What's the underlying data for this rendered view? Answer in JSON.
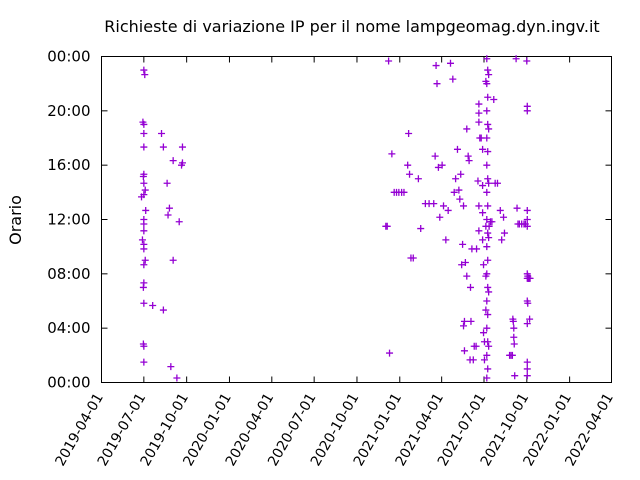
{
  "chart_data": {
    "type": "scatter",
    "title": "Richieste di variazione IP per il nome lampgeomag.dyn.ingv.it",
    "xlabel": "",
    "ylabel": "Orario",
    "x_type": "date",
    "xlim": [
      "2019-04-01",
      "2022-04-01"
    ],
    "ylim": [
      "00:00",
      "24:00"
    ],
    "x_ticks": [
      "2019-04-01",
      "2019-07-01",
      "2019-10-01",
      "2020-01-01",
      "2020-04-01",
      "2020-07-01",
      "2020-10-01",
      "2021-01-01",
      "2021-04-01",
      "2021-07-01",
      "2021-10-01",
      "2022-01-01",
      "2022-04-01"
    ],
    "y_ticks": [
      "00:00",
      "04:00",
      "08:00",
      "12:00",
      "16:00",
      "20:00",
      "00:00"
    ],
    "grid": false,
    "legend": "none",
    "marker": "plus",
    "color": "#9400d3",
    "points": [
      [
        "2019-06-26",
        "13:40"
      ],
      [
        "2019-06-28",
        "10:30"
      ],
      [
        "2019-06-29",
        "19:10"
      ],
      [
        "2019-06-30",
        "15:10"
      ],
      [
        "2019-06-30",
        "07:00"
      ],
      [
        "2019-06-30",
        "02:50"
      ],
      [
        "2019-07-01",
        "23:00"
      ],
      [
        "2019-07-01",
        "19:00"
      ],
      [
        "2019-07-01",
        "18:20"
      ],
      [
        "2019-07-01",
        "17:20"
      ],
      [
        "2019-07-01",
        "15:20"
      ],
      [
        "2019-07-01",
        "14:40"
      ],
      [
        "2019-07-01",
        "13:50"
      ],
      [
        "2019-07-01",
        "12:00"
      ],
      [
        "2019-07-01",
        "11:40"
      ],
      [
        "2019-07-01",
        "11:10"
      ],
      [
        "2019-07-01",
        "10:10"
      ],
      [
        "2019-07-01",
        "09:50"
      ],
      [
        "2019-07-01",
        "08:40"
      ],
      [
        "2019-07-01",
        "07:20"
      ],
      [
        "2019-07-01",
        "05:50"
      ],
      [
        "2019-07-01",
        "02:40"
      ],
      [
        "2019-07-01",
        "01:30"
      ],
      [
        "2019-07-03",
        "22:40"
      ],
      [
        "2019-07-04",
        "14:10"
      ],
      [
        "2019-07-04",
        "09:00"
      ],
      [
        "2019-07-05",
        "12:40"
      ],
      [
        "2019-07-20",
        "05:40"
      ],
      [
        "2019-08-08",
        "18:20"
      ],
      [
        "2019-08-12",
        "17:20"
      ],
      [
        "2019-08-12",
        "05:20"
      ],
      [
        "2019-08-20",
        "14:40"
      ],
      [
        "2019-08-22",
        "12:20"
      ],
      [
        "2019-08-25",
        "12:50"
      ],
      [
        "2019-08-28",
        "01:10"
      ],
      [
        "2019-09-02",
        "16:20"
      ],
      [
        "2019-09-02",
        "09:00"
      ],
      [
        "2019-09-10",
        "00:20"
      ],
      [
        "2019-09-15",
        "11:50"
      ],
      [
        "2019-09-20",
        "16:00"
      ],
      [
        "2019-09-22",
        "17:20"
      ],
      [
        "2019-09-22",
        "16:10"
      ],
      [
        "2020-12-02",
        "11:30"
      ],
      [
        "2020-12-05",
        "11:30"
      ],
      [
        "2020-12-08",
        "23:40"
      ],
      [
        "2020-12-10",
        "02:10"
      ],
      [
        "2020-12-15",
        "16:50"
      ],
      [
        "2020-12-20",
        "14:00"
      ],
      [
        "2020-12-25",
        "14:00"
      ],
      [
        "2020-12-30",
        "14:00"
      ],
      [
        "2021-01-05",
        "14:00"
      ],
      [
        "2021-01-10",
        "14:00"
      ],
      [
        "2021-01-18",
        "16:00"
      ],
      [
        "2021-01-20",
        "18:20"
      ],
      [
        "2021-01-22",
        "15:20"
      ],
      [
        "2021-01-25",
        "09:10"
      ],
      [
        "2021-01-30",
        "09:10"
      ],
      [
        "2021-02-10",
        "15:00"
      ],
      [
        "2021-02-15",
        "11:20"
      ],
      [
        "2021-02-25",
        "13:10"
      ],
      [
        "2021-03-05",
        "13:10"
      ],
      [
        "2021-03-15",
        "13:10"
      ],
      [
        "2021-03-18",
        "16:40"
      ],
      [
        "2021-03-20",
        "23:20"
      ],
      [
        "2021-03-22",
        "22:00"
      ],
      [
        "2021-03-25",
        "15:50"
      ],
      [
        "2021-03-28",
        "12:10"
      ],
      [
        "2021-04-02",
        "16:00"
      ],
      [
        "2021-04-05",
        "13:00"
      ],
      [
        "2021-04-10",
        "10:30"
      ],
      [
        "2021-04-15",
        "12:40"
      ],
      [
        "2021-04-20",
        "23:30"
      ],
      [
        "2021-04-25",
        "22:20"
      ],
      [
        "2021-04-28",
        "14:00"
      ],
      [
        "2021-05-01",
        "15:00"
      ],
      [
        "2021-05-05",
        "17:10"
      ],
      [
        "2021-05-08",
        "14:10"
      ],
      [
        "2021-05-10",
        "13:30"
      ],
      [
        "2021-05-12",
        "15:20"
      ],
      [
        "2021-05-14",
        "08:40"
      ],
      [
        "2021-05-16",
        "10:10"
      ],
      [
        "2021-05-18",
        "13:00"
      ],
      [
        "2021-05-18",
        "04:10"
      ],
      [
        "2021-05-20",
        "04:30"
      ],
      [
        "2021-05-20",
        "02:20"
      ],
      [
        "2021-05-22",
        "08:50"
      ],
      [
        "2021-05-25",
        "18:40"
      ],
      [
        "2021-05-25",
        "07:50"
      ],
      [
        "2021-05-28",
        "16:40"
      ],
      [
        "2021-05-30",
        "16:20"
      ],
      [
        "2021-06-01",
        "01:40"
      ],
      [
        "2021-06-02",
        "07:00"
      ],
      [
        "2021-06-03",
        "04:30"
      ],
      [
        "2021-06-05",
        "09:50"
      ],
      [
        "2021-06-08",
        "01:40"
      ],
      [
        "2021-06-10",
        "02:40"
      ],
      [
        "2021-06-14",
        "02:40"
      ],
      [
        "2021-06-15",
        "09:50"
      ],
      [
        "2021-06-18",
        "14:50"
      ],
      [
        "2021-06-20",
        "20:30"
      ],
      [
        "2021-06-20",
        "19:50"
      ],
      [
        "2021-06-20",
        "19:10"
      ],
      [
        "2021-06-20",
        "13:00"
      ],
      [
        "2021-06-20",
        "11:10"
      ],
      [
        "2021-06-22",
        "18:00"
      ],
      [
        "2021-06-25",
        "18:00"
      ],
      [
        "2021-06-28",
        "17:10"
      ],
      [
        "2021-06-28",
        "14:30"
      ],
      [
        "2021-06-28",
        "12:30"
      ],
      [
        "2021-06-28",
        "10:30"
      ],
      [
        "2021-06-30",
        "08:40"
      ],
      [
        "2021-06-30",
        "03:40"
      ],
      [
        "2021-07-02",
        "03:00"
      ],
      [
        "2021-07-02",
        "01:40"
      ],
      [
        "2021-07-05",
        "22:10"
      ],
      [
        "2021-07-05",
        "11:30"
      ],
      [
        "2021-07-05",
        "07:50"
      ],
      [
        "2021-07-05",
        "05:20"
      ],
      [
        "2021-07-07",
        "23:50"
      ],
      [
        "2021-07-07",
        "22:00"
      ],
      [
        "2021-07-07",
        "20:00"
      ],
      [
        "2021-07-07",
        "18:00"
      ],
      [
        "2021-07-07",
        "16:00"
      ],
      [
        "2021-07-07",
        "14:00"
      ],
      [
        "2021-07-07",
        "12:00"
      ],
      [
        "2021-07-07",
        "10:00"
      ],
      [
        "2021-07-07",
        "08:00"
      ],
      [
        "2021-07-07",
        "06:00"
      ],
      [
        "2021-07-07",
        "04:00"
      ],
      [
        "2021-07-07",
        "02:00"
      ],
      [
        "2021-07-07",
        "00:20"
      ],
      [
        "2021-07-09",
        "23:00"
      ],
      [
        "2021-07-09",
        "21:00"
      ],
      [
        "2021-07-09",
        "19:00"
      ],
      [
        "2021-07-09",
        "17:00"
      ],
      [
        "2021-07-09",
        "15:00"
      ],
      [
        "2021-07-09",
        "13:00"
      ],
      [
        "2021-07-09",
        "11:00"
      ],
      [
        "2021-07-09",
        "09:00"
      ],
      [
        "2021-07-09",
        "07:00"
      ],
      [
        "2021-07-09",
        "05:00"
      ],
      [
        "2021-07-09",
        "03:00"
      ],
      [
        "2021-07-09",
        "01:00"
      ],
      [
        "2021-07-11",
        "22:40"
      ],
      [
        "2021-07-11",
        "18:40"
      ],
      [
        "2021-07-11",
        "14:40"
      ],
      [
        "2021-07-11",
        "10:40"
      ],
      [
        "2021-07-11",
        "06:40"
      ],
      [
        "2021-07-11",
        "02:40"
      ],
      [
        "2021-07-12",
        "11:30"
      ],
      [
        "2021-07-15",
        "11:50"
      ],
      [
        "2021-07-18",
        "11:50"
      ],
      [
        "2021-07-22",
        "20:50"
      ],
      [
        "2021-07-25",
        "14:40"
      ],
      [
        "2021-07-30",
        "14:40"
      ],
      [
        "2021-08-05",
        "12:40"
      ],
      [
        "2021-08-08",
        "10:30"
      ],
      [
        "2021-08-12",
        "12:10"
      ],
      [
        "2021-08-14",
        "11:00"
      ],
      [
        "2021-08-25",
        "02:00"
      ],
      [
        "2021-08-28",
        "02:00"
      ],
      [
        "2021-08-31",
        "02:00"
      ],
      [
        "2021-09-01",
        "04:40"
      ],
      [
        "2021-09-02",
        "04:30"
      ],
      [
        "2021-09-03",
        "04:00"
      ],
      [
        "2021-09-03",
        "03:20"
      ],
      [
        "2021-09-04",
        "02:50"
      ],
      [
        "2021-09-05",
        "00:30"
      ],
      [
        "2021-09-08",
        "23:50"
      ],
      [
        "2021-09-10",
        "12:50"
      ],
      [
        "2021-09-12",
        "11:40"
      ],
      [
        "2021-09-15",
        "11:40"
      ],
      [
        "2021-09-20",
        "11:40"
      ],
      [
        "2021-09-25",
        "11:40"
      ],
      [
        "2021-09-28",
        "11:40"
      ],
      [
        "2021-10-01",
        "23:40"
      ],
      [
        "2021-10-02",
        "20:20"
      ],
      [
        "2021-10-02",
        "20:00"
      ],
      [
        "2021-10-02",
        "12:40"
      ],
      [
        "2021-10-02",
        "12:00"
      ],
      [
        "2021-10-02",
        "11:30"
      ],
      [
        "2021-10-02",
        "08:00"
      ],
      [
        "2021-10-02",
        "07:40"
      ],
      [
        "2021-10-02",
        "06:00"
      ],
      [
        "2021-10-02",
        "04:20"
      ],
      [
        "2021-10-02",
        "01:30"
      ],
      [
        "2021-10-02",
        "01:00"
      ],
      [
        "2021-10-02",
        "00:30"
      ],
      [
        "2021-10-03",
        "07:50"
      ],
      [
        "2021-10-03",
        "05:50"
      ],
      [
        "2021-10-04",
        "07:40"
      ],
      [
        "2021-10-05",
        "07:40"
      ],
      [
        "2021-10-06",
        "07:40"
      ],
      [
        "2021-10-07",
        "04:40"
      ],
      [
        "2021-10-08",
        "07:40"
      ]
    ]
  }
}
